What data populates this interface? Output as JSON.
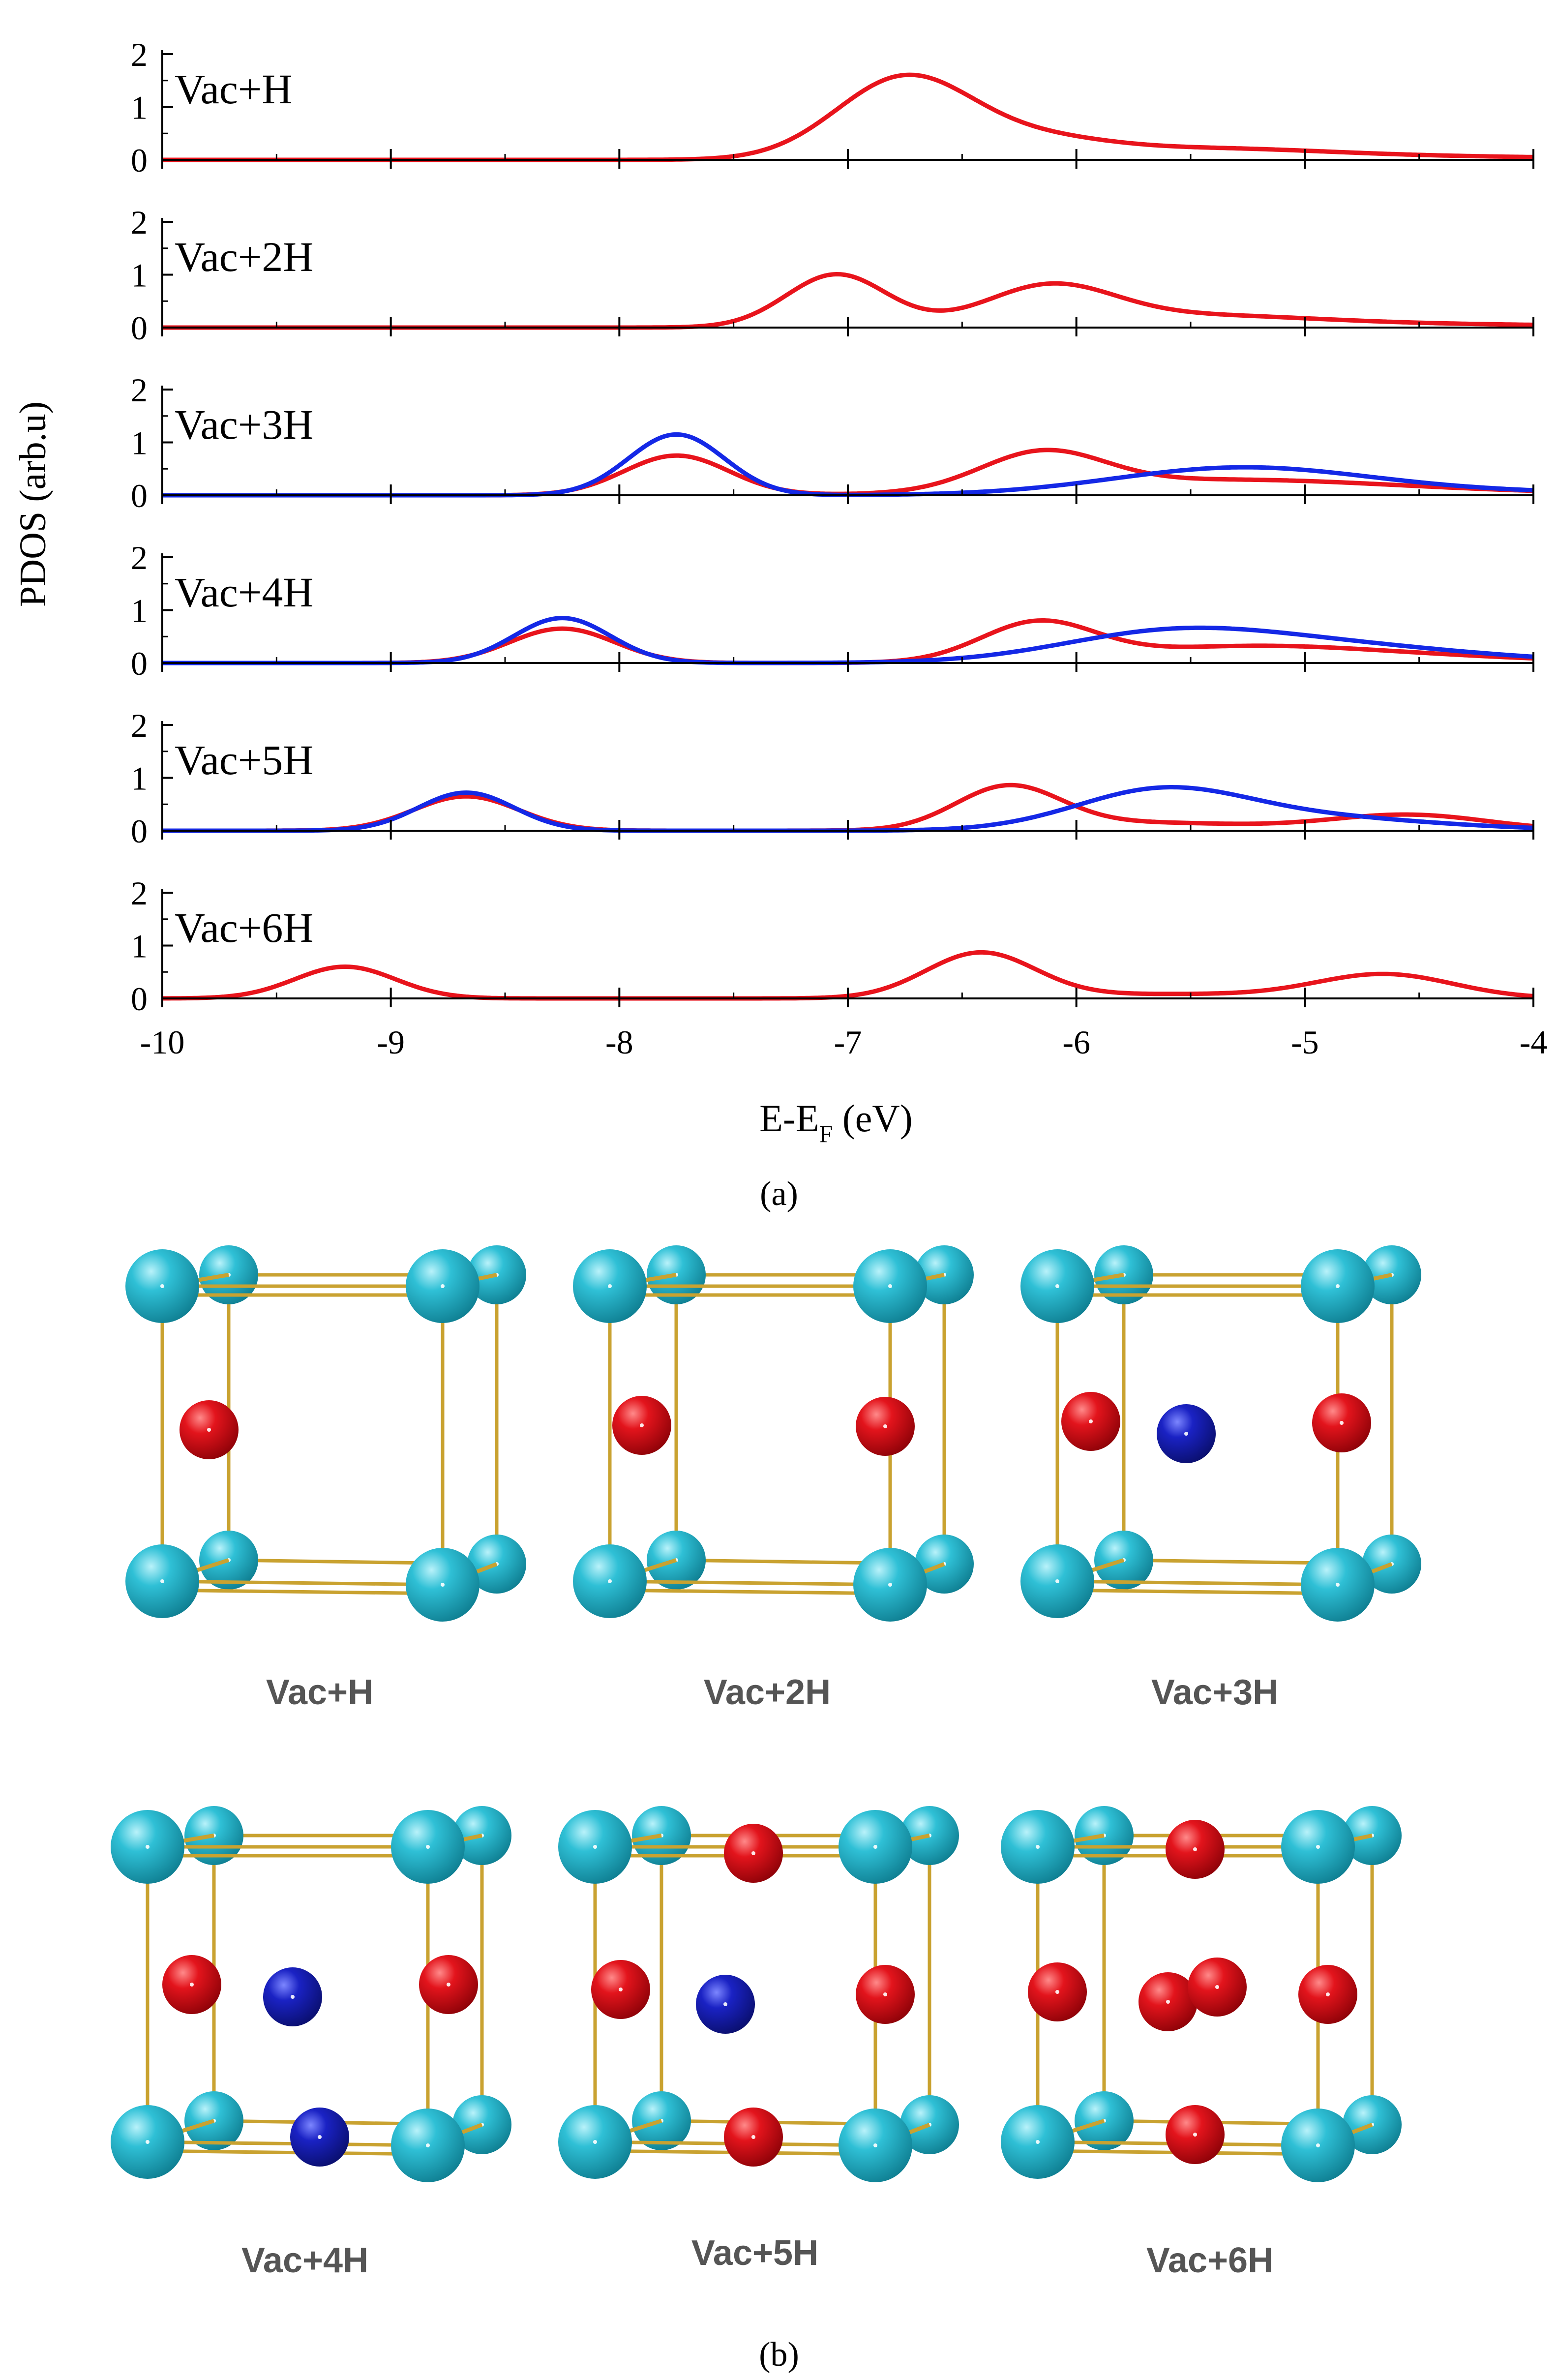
{
  "chart_data": {
    "type": "line",
    "ylabel": "PDOS (arb.u)",
    "xlabel_main": "E-E",
    "xlabel_sub": "F",
    "xlabel_unit": " (eV)",
    "xlim": [
      -10,
      -4
    ],
    "ylim": [
      0,
      2
    ],
    "x_ticks": [
      -10,
      -9,
      -8,
      -7,
      -6,
      -5,
      -4
    ],
    "x_tick_labels": [
      "-10",
      "-9",
      "-8",
      "-7",
      "-6",
      "-5",
      "-4"
    ],
    "y_ticks": [
      0,
      1,
      2
    ],
    "y_tick_labels": [
      "0",
      "1",
      "2"
    ],
    "series_colors": {
      "red": "#e8141c",
      "blue": "#1428e6"
    },
    "panels": [
      {
        "label": "Vac+H",
        "red": [
          [
            -6.75,
            1.55,
            0.3
          ],
          [
            -6.15,
            0.28,
            0.3
          ],
          [
            -5.5,
            0.18,
            0.55
          ],
          [
            -4.6,
            0.06,
            0.9
          ]
        ]
      },
      {
        "label": "Vac+2H",
        "red": [
          [
            -7.05,
            1.0,
            0.22
          ],
          [
            -6.12,
            0.7,
            0.28
          ],
          [
            -5.55,
            0.2,
            0.55
          ],
          [
            -4.6,
            0.06,
            0.9
          ]
        ]
      },
      {
        "label": "Vac+3H",
        "red": [
          [
            -7.75,
            0.75,
            0.23
          ],
          [
            -6.15,
            0.7,
            0.27
          ],
          [
            -5.4,
            0.26,
            0.7
          ],
          [
            -4.5,
            0.06,
            0.8
          ]
        ],
        "blue": [
          [
            -7.75,
            1.15,
            0.21
          ],
          [
            -5.3,
            0.48,
            0.55
          ],
          [
            -4.5,
            0.08,
            0.8
          ]
        ]
      },
      {
        "label": "Vac+4H",
        "red": [
          [
            -8.25,
            0.65,
            0.23
          ],
          [
            -6.17,
            0.72,
            0.25
          ],
          [
            -5.3,
            0.28,
            0.55
          ],
          [
            -4.5,
            0.1,
            0.6
          ]
        ],
        "blue": [
          [
            -8.25,
            0.85,
            0.21
          ],
          [
            -5.6,
            0.55,
            0.48
          ],
          [
            -4.9,
            0.25,
            0.5
          ],
          [
            -4.3,
            0.08,
            0.5
          ]
        ]
      },
      {
        "label": "Vac+5H",
        "red": [
          [
            -8.67,
            0.65,
            0.23
          ],
          [
            -6.3,
            0.8,
            0.23
          ],
          [
            -5.7,
            0.15,
            0.45
          ],
          [
            -4.55,
            0.3,
            0.35
          ]
        ],
        "blue": [
          [
            -8.67,
            0.72,
            0.21
          ],
          [
            -5.62,
            0.78,
            0.38
          ],
          [
            -4.9,
            0.2,
            0.4
          ],
          [
            -4.3,
            0.05,
            0.4
          ]
        ]
      },
      {
        "label": "Vac+6H",
        "red": [
          [
            -9.2,
            0.6,
            0.22
          ],
          [
            -6.42,
            0.85,
            0.24
          ],
          [
            -5.6,
            0.08,
            0.5
          ],
          [
            -4.65,
            0.45,
            0.3
          ]
        ]
      }
    ]
  },
  "captions": {
    "a": "(a)",
    "b": "(b)"
  },
  "structures": {
    "colors": {
      "host": "#2ab7cc",
      "hydrogen_red": "#e0101c",
      "hydrogen_blue": "#1a1ab8",
      "bond": "#c9a230"
    },
    "labels": [
      "Vac+H",
      "Vac+2H",
      "Vac+3H",
      "Vac+4H",
      "Vac+5H",
      "Vac+6H"
    ]
  }
}
